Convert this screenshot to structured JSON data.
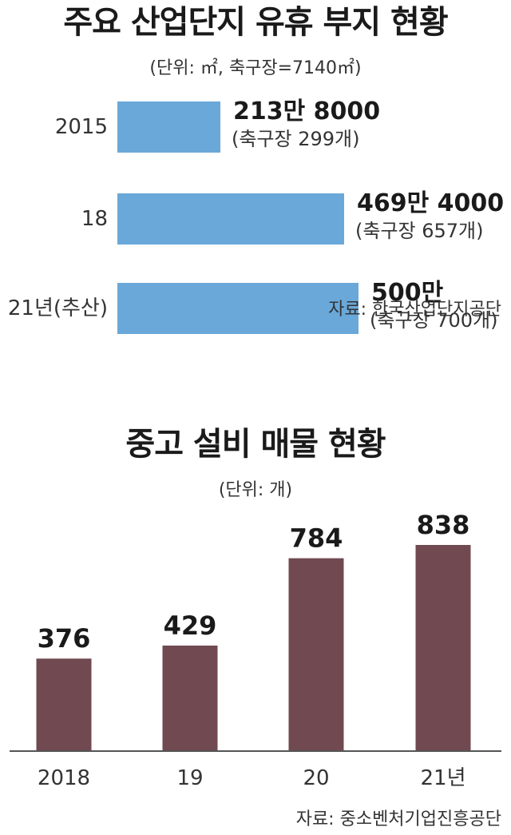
{
  "chart_data": [
    {
      "type": "bar",
      "orientation": "horizontal",
      "title": "주요 산업단지 유휴 부지 현황",
      "unit_note": "(단위: ㎡, 축구장=7140㎡)",
      "source": "자료: 한국산업단지공단",
      "categories": [
        "2015",
        "18",
        "21년(추산)"
      ],
      "values": [
        2138000,
        4694000,
        5000000
      ],
      "value_labels": [
        "213만 8000",
        "469만 4000",
        "500만"
      ],
      "sub_labels": [
        "(축구장 299개)",
        "(축구장 657개)",
        "(축구장 700개)"
      ],
      "bar_color": "#6aa8d9",
      "xlim": [
        0,
        5000000
      ]
    },
    {
      "type": "bar",
      "title": "중고 설비 매물 현황",
      "unit_note": "(단위: 개)",
      "source": "자료: 중소벤처기업진흥공단",
      "categories": [
        "2018",
        "19",
        "20",
        "21년"
      ],
      "values": [
        376,
        429,
        784,
        838
      ],
      "value_labels": [
        "376",
        "429",
        "784",
        "838"
      ],
      "bar_color": "#704a50",
      "ylim": [
        0,
        838
      ]
    }
  ]
}
